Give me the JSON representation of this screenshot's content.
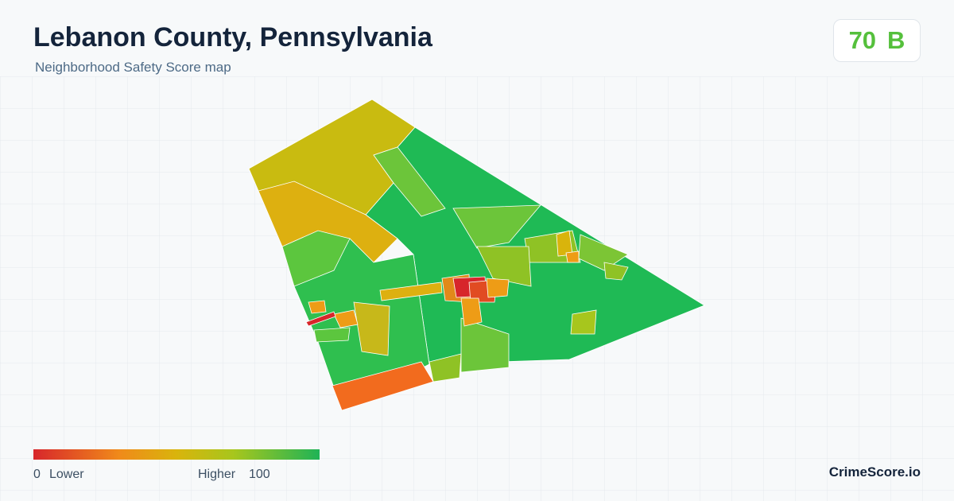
{
  "header": {
    "title": "Lebanon County, Pennsylvania",
    "subtitle": "Neighborhood Safety Score map"
  },
  "score": {
    "value": 70,
    "grade": "B"
  },
  "legend": {
    "min": 0,
    "min_label": "Lower",
    "max_label": "Higher",
    "max": 100
  },
  "brand": "CrimeScore.io"
}
